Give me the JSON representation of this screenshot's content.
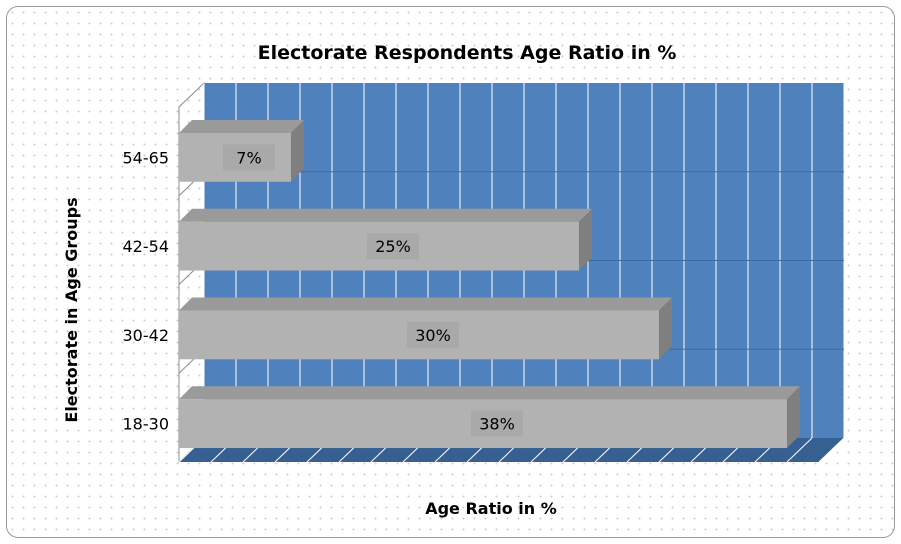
{
  "chart_data": {
    "type": "bar",
    "orientation": "horizontal",
    "style": "3d",
    "title": "Electorate Respondents Age Ratio in %",
    "xlabel": "Age Ratio in %",
    "ylabel": "Electorate in Age Groups",
    "categories": [
      "18-30",
      "30-42",
      "42-54",
      "54-65"
    ],
    "values": [
      38,
      30,
      25,
      7
    ],
    "data_labels": [
      "38%",
      "30%",
      "25%",
      "7%"
    ],
    "xlim": [
      0,
      40
    ],
    "grid": true,
    "legend": "none",
    "colors": {
      "bar": "#b2b2b2",
      "bar_side": "#7f7f7f",
      "plot_back": "#4f81bd",
      "floor": "#376092",
      "grid": "#ffffff"
    }
  }
}
